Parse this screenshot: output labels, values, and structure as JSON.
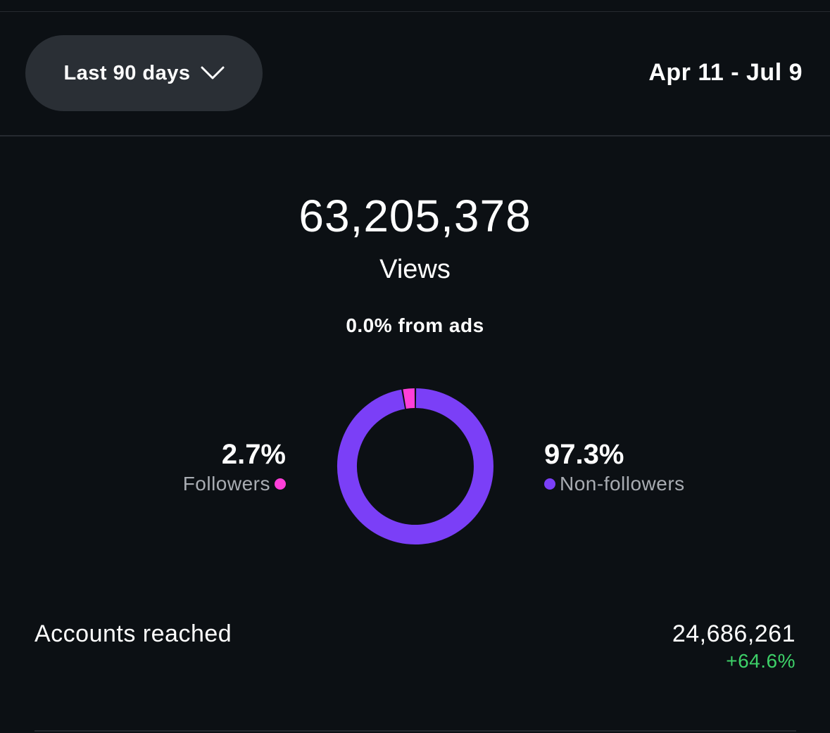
{
  "header": {
    "range_button_label": "Last 90 days",
    "date_range": "Apr 11 - Jul 9"
  },
  "summary": {
    "views_total": "63,205,378",
    "views_label": "Views",
    "ads_label": "0.0% from ads"
  },
  "breakdown": {
    "followers": {
      "percent_label": "2.7%",
      "label": "Followers",
      "value": 2.7,
      "color": "#ff3fd9"
    },
    "non_followers": {
      "percent_label": "97.3%",
      "label": "Non-followers",
      "value": 97.3,
      "color": "#7b3ff7"
    }
  },
  "accounts_reached": {
    "label": "Accounts reached",
    "value": "24,686,261",
    "change": "+64.6%",
    "change_color": "#3dd068"
  },
  "icons": {
    "range_button": "chevron-down-icon"
  }
}
